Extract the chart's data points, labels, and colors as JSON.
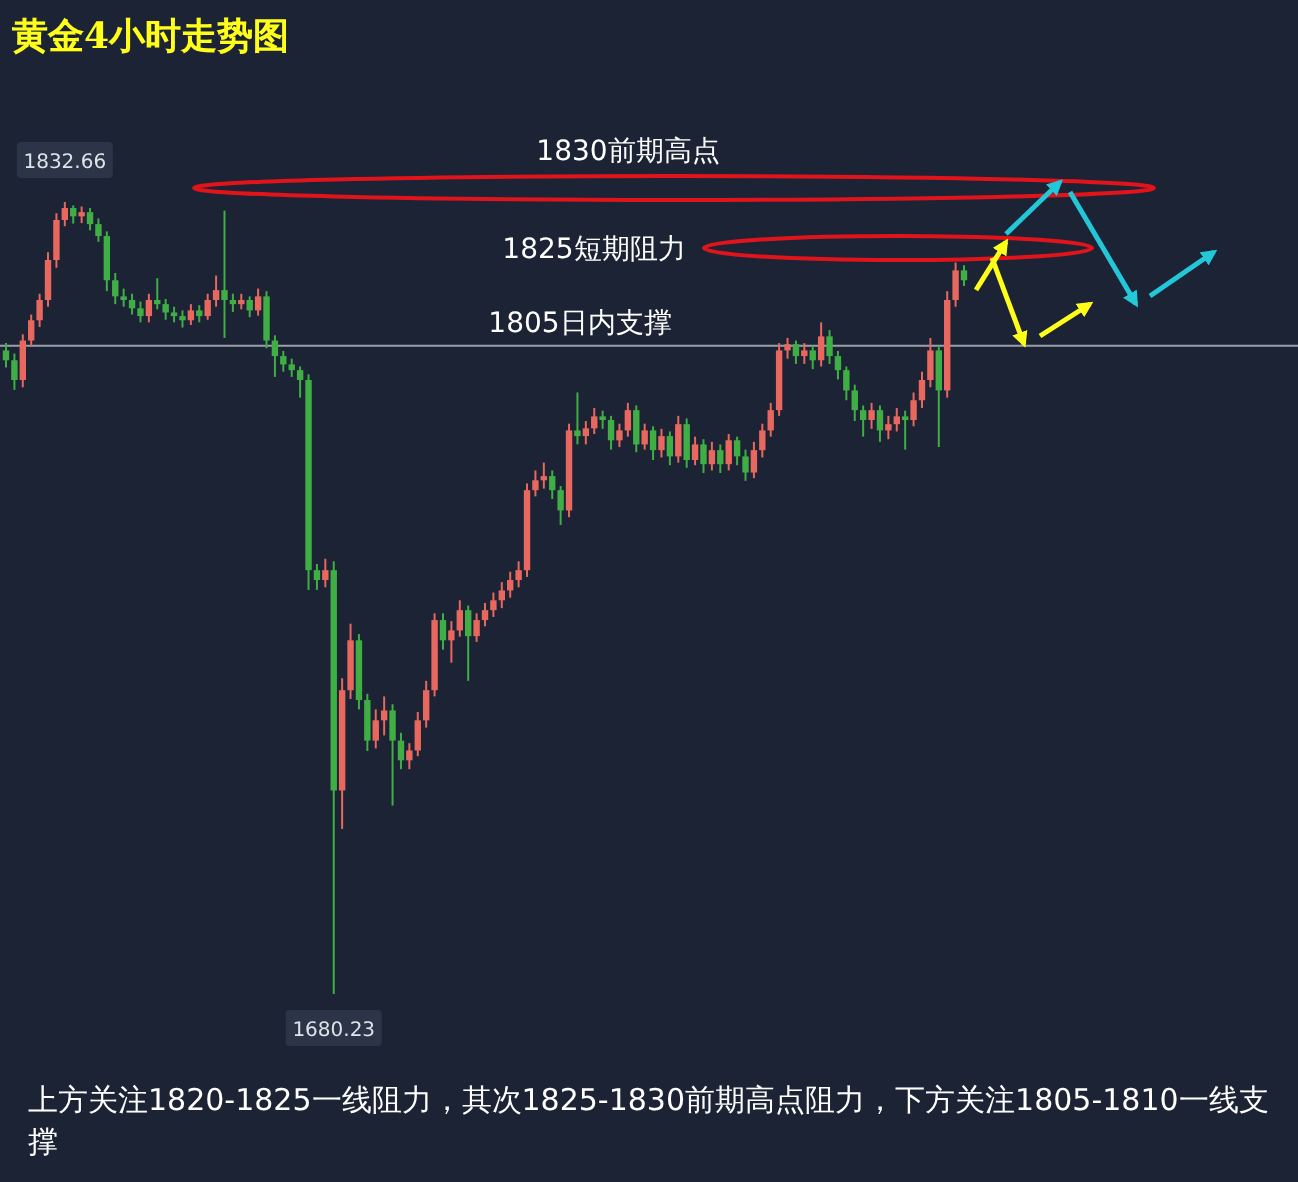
{
  "chart_data": {
    "type": "candlestick",
    "title": "黄金4小时走势图",
    "categories": [
      null,
      null,
      null,
      null,
      null,
      null,
      null,
      null,
      null,
      null,
      null,
      null,
      null,
      null,
      null,
      null,
      null,
      null,
      null,
      null,
      null,
      null,
      null,
      null,
      null,
      null,
      null,
      null,
      null,
      null,
      null,
      null,
      null,
      null,
      null,
      null,
      null,
      null,
      null,
      null,
      null,
      null,
      null,
      null,
      null,
      null,
      null,
      null,
      null,
      null,
      null,
      null,
      null,
      null,
      null,
      null,
      null,
      null,
      null,
      null,
      null,
      null,
      null,
      null,
      null,
      null,
      null,
      null,
      null,
      null,
      null,
      null,
      null,
      null,
      null,
      null,
      null,
      null,
      null,
      null,
      null,
      null,
      null,
      null,
      null,
      null,
      null,
      null,
      null,
      null,
      null,
      null,
      null,
      null,
      null,
      null,
      null,
      null,
      null,
      null,
      null,
      null,
      null,
      null,
      null,
      null,
      null,
      null,
      null,
      null,
      null,
      null,
      null,
      null,
      null
    ],
    "ohlc": [
      [
        1804.1,
        1805.5,
        1800.8,
        1802.2
      ],
      [
        1802.2,
        1803.5,
        1796.5,
        1798.4
      ],
      [
        1798.4,
        1807.2,
        1797.0,
        1806.0
      ],
      [
        1806.0,
        1811.0,
        1804.8,
        1809.9
      ],
      [
        1809.9,
        1815.0,
        1808.6,
        1813.8
      ],
      [
        1813.8,
        1823.0,
        1812.5,
        1821.5
      ],
      [
        1821.5,
        1830.5,
        1820.0,
        1829.2
      ],
      [
        1829.2,
        1832.66,
        1828.0,
        1831.5
      ],
      [
        1831.5,
        1832.0,
        1828.5,
        1829.9
      ],
      [
        1829.9,
        1831.8,
        1828.6,
        1830.7
      ],
      [
        1830.7,
        1831.5,
        1827.2,
        1828.4
      ],
      [
        1828.4,
        1829.5,
        1825.0,
        1826.1
      ],
      [
        1826.1,
        1827.0,
        1815.5,
        1817.6
      ],
      [
        1817.6,
        1819.0,
        1813.0,
        1814.5
      ],
      [
        1814.5,
        1816.0,
        1812.5,
        1813.8
      ],
      [
        1813.8,
        1815.0,
        1811.0,
        1812.2
      ],
      [
        1812.2,
        1813.5,
        1809.5,
        1810.7
      ],
      [
        1810.7,
        1815.0,
        1809.5,
        1813.8
      ],
      [
        1813.8,
        1818.0,
        1812.0,
        1813.0
      ],
      [
        1813.0,
        1814.0,
        1810.0,
        1811.4
      ],
      [
        1811.4,
        1812.5,
        1809.5,
        1810.7
      ],
      [
        1810.7,
        1811.8,
        1808.5,
        1809.9
      ],
      [
        1809.9,
        1813.0,
        1809.0,
        1811.8
      ],
      [
        1811.8,
        1812.8,
        1809.5,
        1810.7
      ],
      [
        1810.7,
        1815.0,
        1810.0,
        1813.8
      ],
      [
        1813.8,
        1818.5,
        1812.5,
        1815.7
      ],
      [
        1815.7,
        1831.0,
        1806.5,
        1813.8
      ],
      [
        1813.8,
        1815.0,
        1811.5,
        1813.0
      ],
      [
        1813.0,
        1815.0,
        1812.0,
        1813.8
      ],
      [
        1813.8,
        1814.5,
        1810.5,
        1811.8
      ],
      [
        1811.8,
        1816.0,
        1810.8,
        1814.5
      ],
      [
        1814.5,
        1815.5,
        1804.5,
        1806.0
      ],
      [
        1806.0,
        1807.0,
        1799.0,
        1803.0
      ],
      [
        1803.0,
        1804.0,
        1800.0,
        1801.4
      ],
      [
        1801.4,
        1802.5,
        1799.0,
        1800.3
      ],
      [
        1800.3,
        1801.0,
        1795.0,
        1798.4
      ],
      [
        1798.4,
        1799.5,
        1758.0,
        1761.8
      ],
      [
        1761.8,
        1763.0,
        1758.0,
        1759.9
      ],
      [
        1759.9,
        1764.0,
        1758.5,
        1761.8
      ],
      [
        1761.8,
        1763.5,
        1680.23,
        1719.4
      ],
      [
        1719.4,
        1741.0,
        1712.0,
        1738.7
      ],
      [
        1738.7,
        1751.5,
        1737.0,
        1748.3
      ],
      [
        1748.3,
        1749.5,
        1735.0,
        1736.8
      ],
      [
        1736.8,
        1738.0,
        1727.0,
        1729.0
      ],
      [
        1729.0,
        1735.0,
        1727.5,
        1732.9
      ],
      [
        1732.9,
        1737.5,
        1730.0,
        1734.8
      ],
      [
        1734.8,
        1736.0,
        1716.5,
        1729.0
      ],
      [
        1729.0,
        1730.5,
        1723.5,
        1725.2
      ],
      [
        1725.2,
        1728.5,
        1723.5,
        1727.1
      ],
      [
        1727.1,
        1734.5,
        1726.0,
        1732.9
      ],
      [
        1732.9,
        1740.5,
        1731.5,
        1738.7
      ],
      [
        1738.7,
        1753.5,
        1737.5,
        1752.2
      ],
      [
        1752.2,
        1753.5,
        1746.5,
        1748.3
      ],
      [
        1748.3,
        1752.0,
        1744.0,
        1750.2
      ],
      [
        1750.2,
        1756.0,
        1749.0,
        1754.1
      ],
      [
        1754.1,
        1755.0,
        1740.5,
        1749.1
      ],
      [
        1749.1,
        1753.5,
        1748.0,
        1752.2
      ],
      [
        1752.2,
        1755.5,
        1751.0,
        1754.1
      ],
      [
        1754.1,
        1757.5,
        1752.8,
        1756.0
      ],
      [
        1756.0,
        1759.5,
        1754.5,
        1757.9
      ],
      [
        1757.9,
        1761.5,
        1756.5,
        1759.9
      ],
      [
        1759.9,
        1763.5,
        1758.5,
        1761.8
      ],
      [
        1761.8,
        1778.5,
        1760.5,
        1777.2
      ],
      [
        1777.2,
        1781.0,
        1776.0,
        1779.1
      ],
      [
        1779.1,
        1782.5,
        1777.5,
        1779.9
      ],
      [
        1779.9,
        1781.0,
        1775.5,
        1777.2
      ],
      [
        1777.2,
        1778.0,
        1770.5,
        1773.3
      ],
      [
        1773.3,
        1790.0,
        1772.0,
        1788.7
      ],
      [
        1788.7,
        1796.0,
        1786.0,
        1787.6
      ],
      [
        1787.6,
        1790.5,
        1786.0,
        1789.1
      ],
      [
        1789.1,
        1793.0,
        1788.0,
        1791.4
      ],
      [
        1791.4,
        1792.5,
        1789.0,
        1790.7
      ],
      [
        1790.7,
        1791.5,
        1785.0,
        1786.8
      ],
      [
        1786.8,
        1790.0,
        1785.5,
        1788.7
      ],
      [
        1788.7,
        1794.0,
        1787.5,
        1792.6
      ],
      [
        1792.6,
        1793.5,
        1784.5,
        1786.0
      ],
      [
        1786.0,
        1790.0,
        1785.0,
        1788.7
      ],
      [
        1788.7,
        1789.5,
        1783.0,
        1784.9
      ],
      [
        1784.9,
        1789.0,
        1783.5,
        1787.6
      ],
      [
        1787.6,
        1788.5,
        1782.0,
        1783.7
      ],
      [
        1783.7,
        1791.5,
        1782.5,
        1789.9
      ],
      [
        1789.9,
        1791.0,
        1781.5,
        1783.0
      ],
      [
        1783.0,
        1787.5,
        1782.0,
        1786.0
      ],
      [
        1786.0,
        1787.0,
        1780.5,
        1782.2
      ],
      [
        1782.2,
        1786.5,
        1781.0,
        1784.9
      ],
      [
        1784.9,
        1786.0,
        1780.5,
        1782.2
      ],
      [
        1782.2,
        1788.0,
        1781.0,
        1786.8
      ],
      [
        1786.8,
        1787.5,
        1782.0,
        1783.7
      ],
      [
        1783.7,
        1785.0,
        1779.0,
        1780.6
      ],
      [
        1780.6,
        1786.5,
        1779.5,
        1784.9
      ],
      [
        1784.9,
        1790.0,
        1783.5,
        1788.7
      ],
      [
        1788.7,
        1794.0,
        1787.5,
        1792.6
      ],
      [
        1792.6,
        1805.5,
        1791.5,
        1804.1
      ],
      [
        1804.1,
        1806.5,
        1802.5,
        1805.3
      ],
      [
        1805.3,
        1806.0,
        1801.5,
        1803.0
      ],
      [
        1803.0,
        1805.5,
        1801.5,
        1804.1
      ],
      [
        1804.1,
        1805.0,
        1800.5,
        1802.2
      ],
      [
        1802.2,
        1809.5,
        1801.0,
        1806.8
      ],
      [
        1806.8,
        1808.0,
        1801.5,
        1803.0
      ],
      [
        1803.0,
        1804.0,
        1798.5,
        1800.3
      ],
      [
        1800.3,
        1801.0,
        1794.5,
        1796.4
      ],
      [
        1796.4,
        1797.5,
        1790.5,
        1792.6
      ],
      [
        1792.6,
        1793.5,
        1787.5,
        1790.7
      ],
      [
        1790.7,
        1794.0,
        1789.0,
        1792.6
      ],
      [
        1792.6,
        1793.5,
        1786.5,
        1788.7
      ],
      [
        1788.7,
        1791.5,
        1787.0,
        1789.9
      ],
      [
        1789.9,
        1793.0,
        1788.5,
        1791.4
      ],
      [
        1791.4,
        1792.5,
        1785.0,
        1790.7
      ],
      [
        1790.7,
        1796.0,
        1789.5,
        1794.5
      ],
      [
        1794.5,
        1800.0,
        1793.0,
        1798.4
      ],
      [
        1798.4,
        1806.5,
        1797.0,
        1804.1
      ],
      [
        1804.1,
        1805.0,
        1785.5,
        1796.4
      ],
      [
        1796.4,
        1815.5,
        1795.0,
        1813.8
      ],
      [
        1813.8,
        1821.0,
        1812.5,
        1819.5
      ],
      [
        1819.5,
        1820.5,
        1816.5,
        1817.6
      ]
    ],
    "ref_lines": [
      {
        "axis": "y",
        "value": 1805,
        "label": "1805日内支撑",
        "color": "#9aa0aa"
      }
    ],
    "annotations": [
      "1830前期高点",
      "1825短期阻力",
      "上方关注1820-1825一线阻力，其次1825-1830前期高点阻力，下方关注1805-1810一线支撑",
      {
        "text": "1832.66",
        "y": 1832.66
      },
      {
        "text": "1680.23",
        "y": 1680.23
      }
    ]
  }
}
